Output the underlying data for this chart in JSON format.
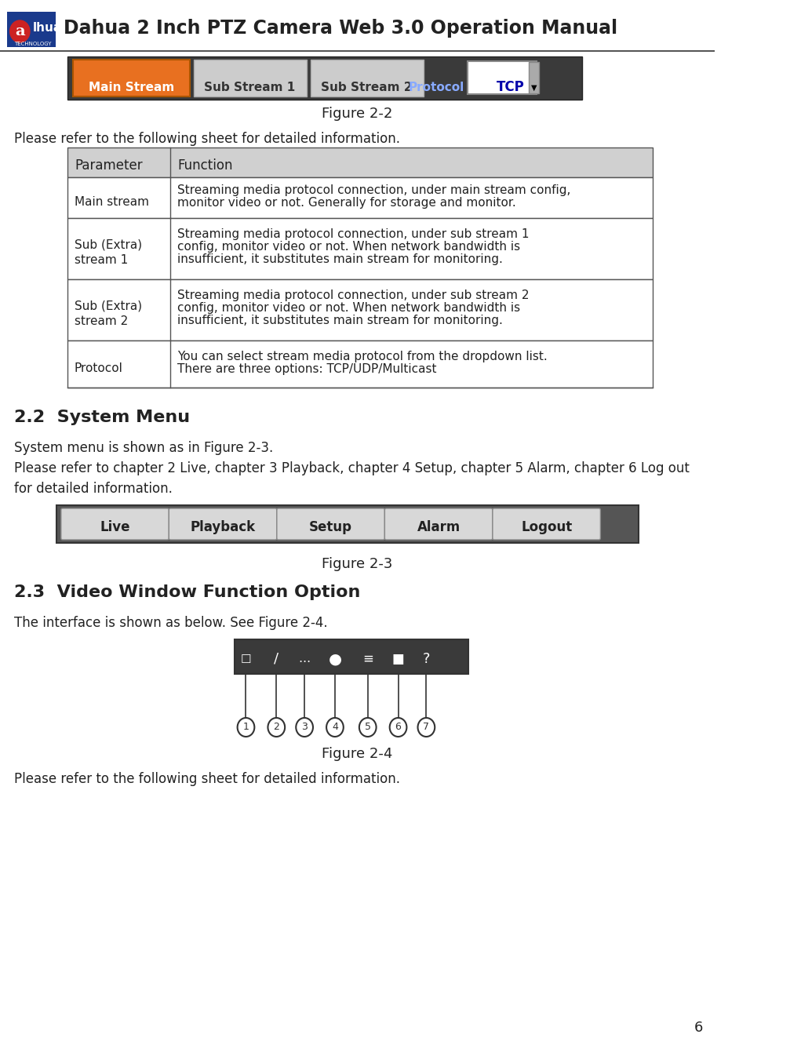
{
  "title": "Dahua 2 Inch PTZ Camera Web 3.0 Operation Manual",
  "page_number": "6",
  "bg_color": "#ffffff",
  "figure2_2_label": "Figure 2-2",
  "intro_text1": "Please refer to the following sheet for detailed information.",
  "table_header": [
    "Parameter",
    "Function"
  ],
  "table_rows": [
    [
      "Main stream",
      "Streaming media protocol connection, under main stream config,\nmonitor video or not. Generally for storage and monitor."
    ],
    [
      "Sub (Extra)\nstream 1",
      "Streaming media protocol connection, under sub stream 1\nconfig, monitor video or not. When network bandwidth is\ninsufficient, it substitutes main stream for monitoring."
    ],
    [
      "Sub (Extra)\nstream 2",
      "Streaming media protocol connection, under sub stream 2\nconfig, monitor video or not. When network bandwidth is\ninsufficient, it substitutes main stream for monitoring."
    ],
    [
      "Protocol",
      "You can select stream media protocol from the dropdown list.\nThere are three options: TCP/UDP/Multicast"
    ]
  ],
  "section_22_title": "2.2  System Menu",
  "section_22_text1": "System menu is shown as in Figure 2-3.",
  "section_22_text2": "Please refer to chapter 2 Live, chapter 3 Playback, chapter 4 Setup, chapter 5 Alarm, chapter 6 Log out\nfor detailed information.",
  "figure2_3_label": "Figure 2-3",
  "menu_buttons": [
    "Live",
    "Playback",
    "Setup",
    "Alarm",
    "Logout"
  ],
  "section_23_title": "2.3  Video Window Function Option",
  "section_23_text1": "The interface is shown as below. See Figure 2-4.",
  "figure2_4_label": "Figure 2-4",
  "last_text": "Please refer to the following sheet for detailed information.",
  "toolbar_bg": "#3a3a3a",
  "menu_bg": "#555555",
  "header_bg": "#d0d0d0",
  "table_border": "#555555",
  "orange_btn": "#e87020",
  "gray_btn": "#cccccc",
  "white_btn": "#f0f0f0"
}
